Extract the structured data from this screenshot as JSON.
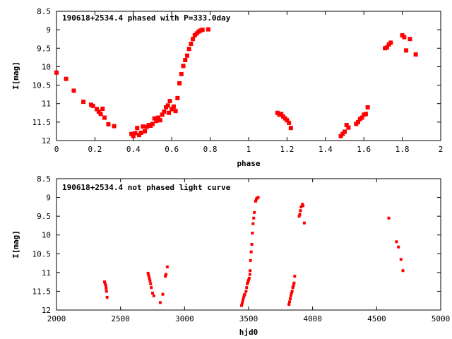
{
  "chart_data": [
    {
      "type": "scatter",
      "title": "190618+2534.4 phased with P=333.0day",
      "xlabel": "phase",
      "ylabel": "I[mag]",
      "xlim": [
        0,
        2
      ],
      "ylim": [
        12,
        8.5
      ],
      "y_inverted": true,
      "grid": false,
      "x_ticks": [
        "0",
        "0.2",
        "0.4",
        "0.6",
        "0.8",
        "1",
        "1.2",
        "1.4",
        "1.6",
        "1.8",
        "2"
      ],
      "x_tick_values": [
        0,
        0.2,
        0.4,
        0.6,
        0.8,
        1,
        1.2,
        1.4,
        1.6,
        1.8,
        2
      ],
      "y_ticks": [
        "8.5",
        "9",
        "9.5",
        "10",
        "10.5",
        "11",
        "11.5",
        "12"
      ],
      "y_tick_values": [
        8.5,
        9,
        9.5,
        10,
        10.5,
        11,
        11.5,
        12
      ],
      "marker_color": "#ff0000",
      "points": [
        [
          0.0,
          10.16
        ],
        [
          0.05,
          10.33
        ],
        [
          0.09,
          10.65
        ],
        [
          0.14,
          10.95
        ],
        [
          0.18,
          11.03
        ],
        [
          0.19,
          11.06
        ],
        [
          0.21,
          11.15
        ],
        [
          0.22,
          11.22
        ],
        [
          0.23,
          11.28
        ],
        [
          0.24,
          11.14
        ],
        [
          0.25,
          11.38
        ],
        [
          0.27,
          11.56
        ],
        [
          0.3,
          11.61
        ],
        [
          0.39,
          11.82
        ],
        [
          0.4,
          11.88
        ],
        [
          0.41,
          11.8
        ],
        [
          0.42,
          11.66
        ],
        [
          0.43,
          11.85
        ],
        [
          0.44,
          11.79
        ],
        [
          0.45,
          11.62
        ],
        [
          0.46,
          11.75
        ],
        [
          0.47,
          11.63
        ],
        [
          0.48,
          11.58
        ],
        [
          0.49,
          11.6
        ],
        [
          0.5,
          11.55
        ],
        [
          0.51,
          11.4
        ],
        [
          0.52,
          11.47
        ],
        [
          0.53,
          11.38
        ],
        [
          0.54,
          11.45
        ],
        [
          0.55,
          11.3
        ],
        [
          0.56,
          11.22
        ],
        [
          0.57,
          11.1
        ],
        [
          0.58,
          11.05
        ],
        [
          0.585,
          11.25
        ],
        [
          0.59,
          10.93
        ],
        [
          0.6,
          11.15
        ],
        [
          0.61,
          11.08
        ],
        [
          0.62,
          11.2
        ],
        [
          0.63,
          10.85
        ],
        [
          0.64,
          10.45
        ],
        [
          0.65,
          10.2
        ],
        [
          0.66,
          9.98
        ],
        [
          0.67,
          9.82
        ],
        [
          0.68,
          9.7
        ],
        [
          0.69,
          9.52
        ],
        [
          0.7,
          9.38
        ],
        [
          0.71,
          9.25
        ],
        [
          0.72,
          9.15
        ],
        [
          0.73,
          9.1
        ],
        [
          0.74,
          9.05
        ],
        [
          0.75,
          9.02
        ],
        [
          0.76,
          9.0
        ],
        [
          0.79,
          8.99
        ],
        [
          1.15,
          11.25
        ],
        [
          1.16,
          11.3
        ],
        [
          1.17,
          11.28
        ],
        [
          1.18,
          11.35
        ],
        [
          1.19,
          11.4
        ],
        [
          1.2,
          11.45
        ],
        [
          1.21,
          11.52
        ],
        [
          1.22,
          11.66
        ],
        [
          1.48,
          11.88
        ],
        [
          1.49,
          11.82
        ],
        [
          1.5,
          11.76
        ],
        [
          1.51,
          11.58
        ],
        [
          1.52,
          11.65
        ],
        [
          1.56,
          11.55
        ],
        [
          1.57,
          11.5
        ],
        [
          1.58,
          11.42
        ],
        [
          1.59,
          11.38
        ],
        [
          1.6,
          11.3
        ],
        [
          1.61,
          11.28
        ],
        [
          1.62,
          11.1
        ],
        [
          1.71,
          9.5
        ],
        [
          1.72,
          9.48
        ],
        [
          1.73,
          9.4
        ],
        [
          1.74,
          9.35
        ],
        [
          1.8,
          9.15
        ],
        [
          1.81,
          9.2
        ],
        [
          1.82,
          9.56
        ],
        [
          1.84,
          9.25
        ],
        [
          1.87,
          9.67
        ]
      ]
    },
    {
      "type": "scatter",
      "title": "190618+2534.4 not phased light curve",
      "xlabel": "hjd0",
      "ylabel": "I[mag]",
      "xlim": [
        2000,
        5000
      ],
      "ylim": [
        12,
        8.5
      ],
      "y_inverted": true,
      "grid": false,
      "x_ticks": [
        "2000",
        "2500",
        "3000",
        "3500",
        "4000",
        "4500",
        "5000"
      ],
      "x_tick_values": [
        2000,
        2500,
        3000,
        3500,
        4000,
        4500,
        5000
      ],
      "y_ticks": [
        "8.5",
        "9",
        "9.5",
        "10",
        "10.5",
        "11",
        "11.5",
        "12"
      ],
      "y_tick_values": [
        8.5,
        9,
        9.5,
        10,
        10.5,
        11,
        11.5,
        12
      ],
      "marker_color": "#ff0000",
      "points": [
        [
          2375,
          11.25
        ],
        [
          2380,
          11.3
        ],
        [
          2385,
          11.35
        ],
        [
          2388,
          11.42
        ],
        [
          2390,
          11.5
        ],
        [
          2395,
          11.66
        ],
        [
          2715,
          11.02
        ],
        [
          2720,
          11.08
        ],
        [
          2725,
          11.15
        ],
        [
          2730,
          11.22
        ],
        [
          2735,
          11.3
        ],
        [
          2740,
          11.4
        ],
        [
          2750,
          11.55
        ],
        [
          2760,
          11.62
        ],
        [
          2810,
          11.8
        ],
        [
          2830,
          11.58
        ],
        [
          2850,
          11.1
        ],
        [
          2855,
          11.05
        ],
        [
          2865,
          10.85
        ],
        [
          3445,
          11.88
        ],
        [
          3450,
          11.82
        ],
        [
          3455,
          11.75
        ],
        [
          3460,
          11.68
        ],
        [
          3465,
          11.62
        ],
        [
          3470,
          11.58
        ],
        [
          3480,
          11.5
        ],
        [
          3485,
          11.4
        ],
        [
          3490,
          11.3
        ],
        [
          3495,
          11.25
        ],
        [
          3500,
          11.2
        ],
        [
          3505,
          11.15
        ],
        [
          3510,
          11.05
        ],
        [
          3512,
          10.95
        ],
        [
          3515,
          10.68
        ],
        [
          3520,
          10.45
        ],
        [
          3525,
          10.25
        ],
        [
          3530,
          9.95
        ],
        [
          3535,
          9.7
        ],
        [
          3540,
          9.55
        ],
        [
          3545,
          9.4
        ],
        [
          3555,
          9.1
        ],
        [
          3560,
          9.05
        ],
        [
          3565,
          9.02
        ],
        [
          3575,
          9.0
        ],
        [
          3815,
          11.85
        ],
        [
          3820,
          11.78
        ],
        [
          3825,
          11.7
        ],
        [
          3830,
          11.62
        ],
        [
          3835,
          11.55
        ],
        [
          3840,
          11.5
        ],
        [
          3845,
          11.4
        ],
        [
          3850,
          11.35
        ],
        [
          3855,
          11.28
        ],
        [
          3860,
          11.1
        ],
        [
          3895,
          9.5
        ],
        [
          3900,
          9.45
        ],
        [
          3905,
          9.35
        ],
        [
          3910,
          9.25
        ],
        [
          3920,
          9.18
        ],
        [
          3925,
          9.22
        ],
        [
          3935,
          9.68
        ],
        [
          4595,
          9.55
        ],
        [
          4655,
          10.18
        ],
        [
          4670,
          10.32
        ],
        [
          4690,
          10.65
        ],
        [
          4705,
          10.95
        ]
      ]
    }
  ]
}
